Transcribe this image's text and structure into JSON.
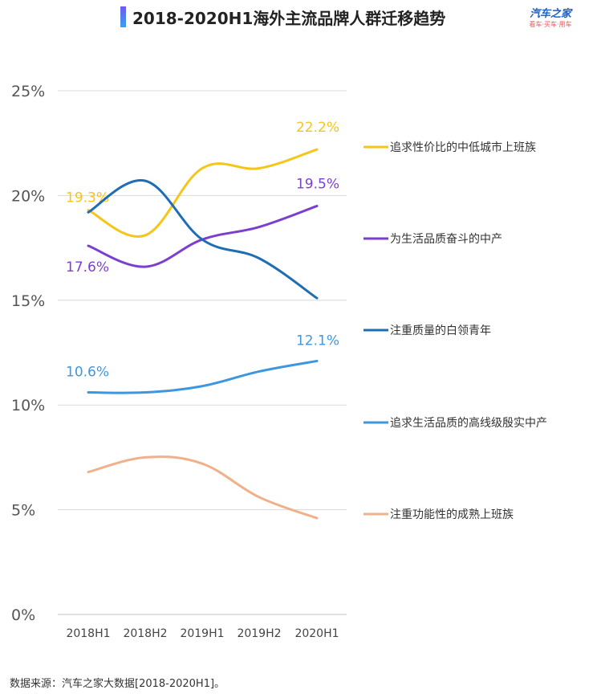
{
  "header": {
    "title": "2018-2020H1海外主流品牌人群迁移趋势",
    "logo_main": "汽车之家",
    "logo_sub": "看车·买车·用车"
  },
  "footer": {
    "source": "数据来源：汽车之家大数据[2018-2020H1]。"
  },
  "chart_data": {
    "type": "line",
    "title": "2018-2020H1海外主流品牌人群迁移趋势",
    "xlabel": "",
    "ylabel": "",
    "categories": [
      "2018H1",
      "2018H2",
      "2019H1",
      "2019H2",
      "2020H1"
    ],
    "ylim": [
      0,
      25
    ],
    "yticks": [
      0,
      5,
      10,
      15,
      20,
      25
    ],
    "ytick_labels": [
      "0%",
      "5%",
      "10%",
      "15%",
      "20%",
      "25%"
    ],
    "grid": true,
    "legend_position": "right",
    "series": [
      {
        "name": "追求性价比的中低城市上班族",
        "color": "#f5c518",
        "values": [
          19.3,
          18.1,
          21.3,
          21.3,
          22.2
        ],
        "labels": [
          {
            "index": 0,
            "text": "19.3%"
          },
          {
            "index": 4,
            "text": "22.2%"
          }
        ]
      },
      {
        "name": "为生活品质奋斗的中产",
        "color": "#7b3fd0",
        "values": [
          17.6,
          16.6,
          17.9,
          18.5,
          19.5
        ],
        "labels": [
          {
            "index": 0,
            "text": "17.6%"
          },
          {
            "index": 4,
            "text": "19.5%"
          }
        ]
      },
      {
        "name": "注重质量的白领青年",
        "color": "#1f6db3",
        "values": [
          19.2,
          20.7,
          17.9,
          17.0,
          15.1
        ],
        "labels": []
      },
      {
        "name": "追求生活品质的高线级殷实中产",
        "color": "#3d97e0",
        "values": [
          10.6,
          10.6,
          10.9,
          11.6,
          12.1
        ],
        "labels": [
          {
            "index": 0,
            "text": "10.6%"
          },
          {
            "index": 4,
            "text": "12.1%"
          }
        ]
      },
      {
        "name": "注重功能性的成熟上班族",
        "color": "#f0b08a",
        "values": [
          6.8,
          7.5,
          7.2,
          5.6,
          4.6
        ],
        "labels": []
      }
    ]
  }
}
